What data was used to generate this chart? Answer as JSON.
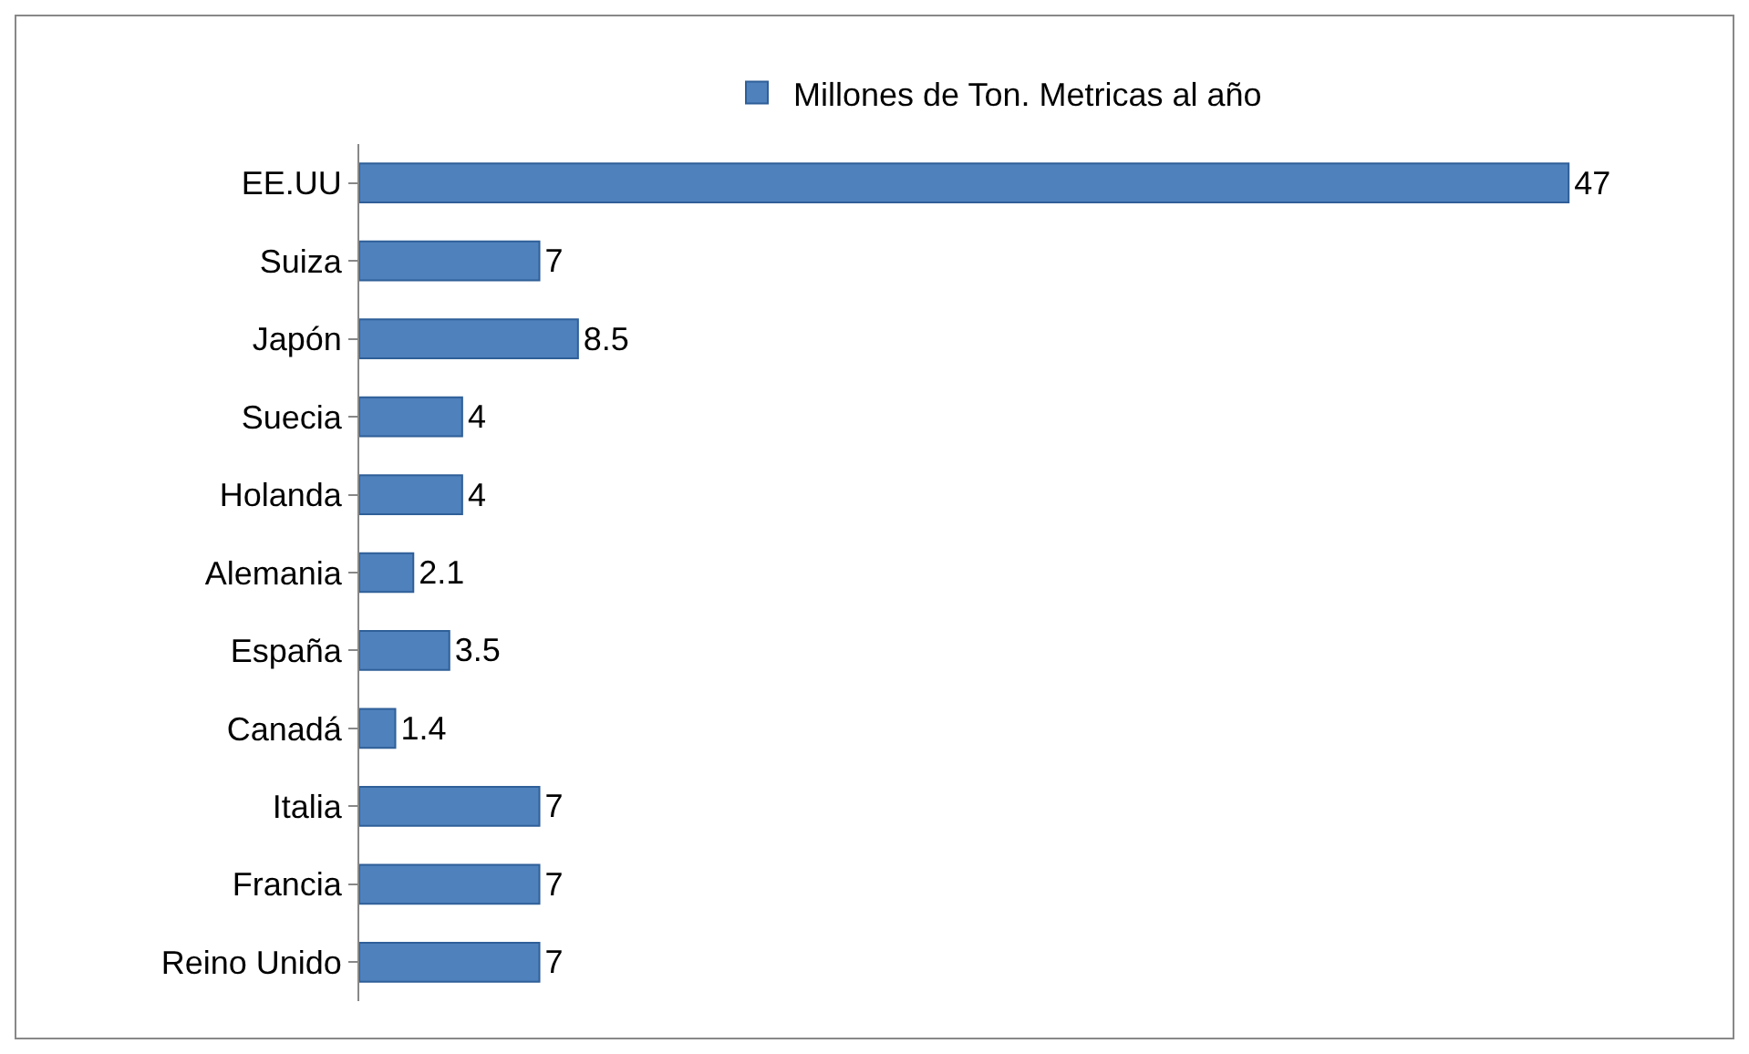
{
  "chart_data": {
    "type": "bar",
    "orientation": "horizontal",
    "categories": [
      "EE.UU",
      "Suiza",
      "Japón",
      "Suecia",
      "Holanda",
      "Alemania",
      "España",
      "Canadá",
      "Italia",
      "Francia",
      "Reino Unido"
    ],
    "series": [
      {
        "name": "Millones de Ton. Metricas al año",
        "color": "#4f81bd",
        "values": [
          47,
          7,
          8.5,
          4,
          4,
          2.1,
          3.5,
          1.4,
          7,
          7,
          7
        ]
      }
    ],
    "data_labels": true,
    "legend": "top",
    "grid": false,
    "tick_labels": "y"
  }
}
